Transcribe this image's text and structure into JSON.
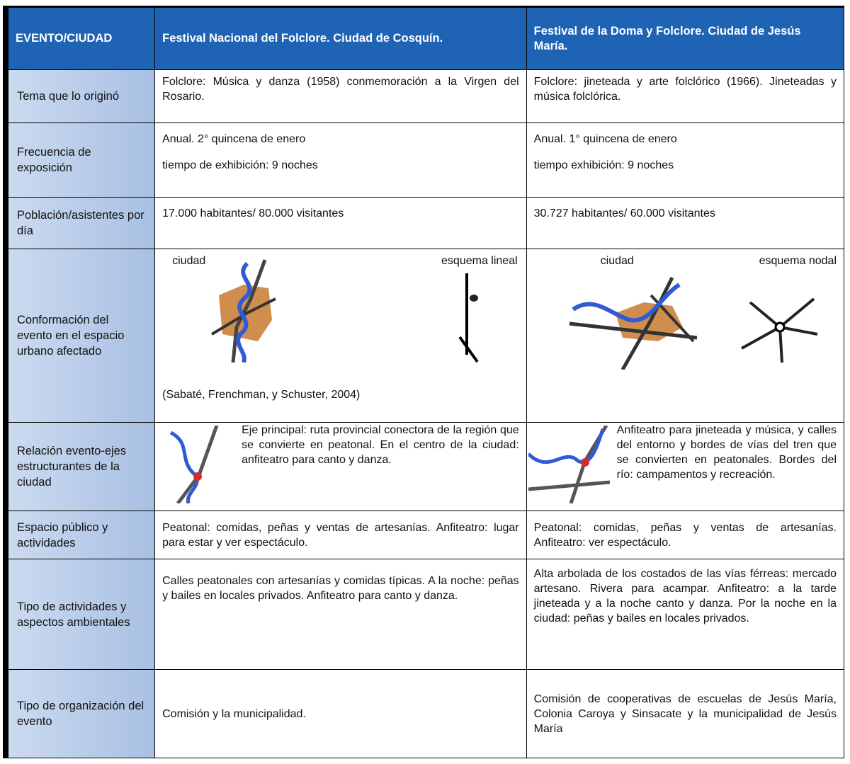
{
  "table": {
    "header": [
      "EVENTO/CIUDAD",
      "Festival Nacional del Folclore. Ciudad de Cosquín.",
      "Festival de la Doma y Folclore. Ciudad de Jesús María."
    ],
    "rows": [
      {
        "label": "Tema que lo originó",
        "cosquin": [
          "Folclore: Música y danza (1958) conmemoración a la Virgen del Rosario."
        ],
        "jesus_maria": [
          "Folclore: jineteada y arte folclórico (1966). Jineteadas y música  folclórica."
        ]
      },
      {
        "label": "Frecuencia de exposición",
        "cosquin": [
          "Anual. 2° quincena de enero",
          "tiempo de exhibición: 9 noches"
        ],
        "jesus_maria": [
          "Anual. 1° quincena de enero",
          "tiempo exhibición: 9 noches"
        ]
      },
      {
        "label": "Población/asistentes por día",
        "cosquin": [
          "17.000 habitantes/  80.000 visitantes"
        ],
        "jesus_maria": [
          "30.727 habitantes/ 60.000 visitantes"
        ]
      },
      {
        "label": "Conformación del evento en el espacio urbano afectado",
        "cosquin": [
          "ciudad",
          "esquema lineal",
          "(Sabaté, Frenchman, y Schuster, 2004)"
        ],
        "jesus_maria": [
          "ciudad",
          "esquema  nodal"
        ]
      },
      {
        "label": "Relación evento-ejes estructurantes de la ciudad",
        "cosquin": [
          "Eje principal: ruta provincial conectora de la región que se convierte en peatonal. En el centro de la ciudad: anfiteatro para canto y danza."
        ],
        "jesus_maria": [
          "Anfiteatro para jineteada y música, y calles del entorno y bordes de vías del tren que se convierten en peatonales. Bordes del río: campamentos y recreación."
        ]
      },
      {
        "label": "Espacio público y actividades",
        "cosquin": [
          "Peatonal: comidas, peñas y ventas de artesanías. Anfiteatro: lugar para estar y ver espectáculo."
        ],
        "jesus_maria": [
          "Peatonal: comidas, peñas y ventas de artesanías. Anfiteatro: ver espectáculo."
        ]
      },
      {
        "label": "Tipo de actividades y aspectos ambientales",
        "cosquin": [
          "Calles peatonales con artesanías y comidas típicas. A la noche: peñas y bailes en locales privados. Anfiteatro para canto y danza."
        ],
        "jesus_maria": [
          "Alta arbolada de los costados de las vías férreas: mercado artesano. Rivera para acampar. Anfiteatro: a la tarde jineteada y a la noche canto y danza. Por la noche en la ciudad: peñas y bailes en locales privados."
        ]
      },
      {
        "label": "Tipo de organización del evento",
        "cosquin": [
          "Comisión y la municipalidad."
        ],
        "jesus_maria": [
          "Comisión de cooperativas de escuelas de Jesús María, Colonia Caroya y Sinsacate y la municipalidad de Jesús María"
        ]
      }
    ]
  }
}
